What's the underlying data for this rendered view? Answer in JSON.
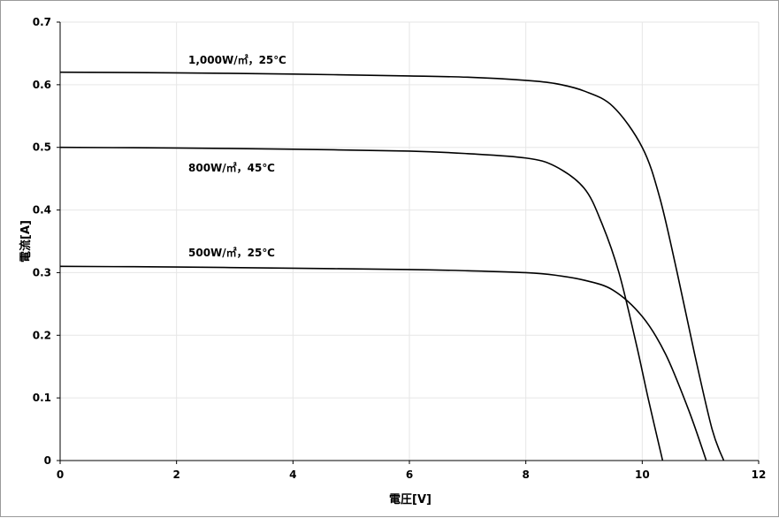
{
  "chart_data": {
    "type": "line",
    "xlabel": "電圧[V]",
    "ylabel": "電流[A]",
    "xlim": [
      0,
      12
    ],
    "ylim": [
      0,
      0.7
    ],
    "xticks": [
      0,
      2,
      4,
      6,
      8,
      10,
      12
    ],
    "yticks": [
      0,
      0.1,
      0.2,
      0.3,
      0.4,
      0.5,
      0.6,
      0.7
    ],
    "xtick_labels": [
      "0",
      "2",
      "4",
      "6",
      "8",
      "10",
      "12"
    ],
    "ytick_labels": [
      "0",
      "0.1",
      "0.2",
      "0.3",
      "0.4",
      "0.5",
      "0.6",
      "0.7"
    ],
    "grid": true,
    "legend": "none",
    "series": [
      {
        "name": "1,000W/㎡，25℃",
        "x": [
          0,
          2,
          4,
          6,
          7,
          8,
          8.5,
          9,
          9.5,
          10,
          10.3,
          10.6,
          10.9,
          11.2,
          11.4
        ],
        "y": [
          0.62,
          0.619,
          0.617,
          0.614,
          0.612,
          0.607,
          0.602,
          0.59,
          0.565,
          0.5,
          0.42,
          0.3,
          0.17,
          0.05,
          0
        ]
      },
      {
        "name": "800W/㎡，45℃",
        "x": [
          0,
          2,
          4,
          6,
          7,
          8,
          8.5,
          9,
          9.3,
          9.6,
          9.9,
          10.1,
          10.35
        ],
        "y": [
          0.5,
          0.499,
          0.497,
          0.494,
          0.49,
          0.483,
          0.47,
          0.435,
          0.38,
          0.3,
          0.185,
          0.1,
          0
        ]
      },
      {
        "name": "500W/㎡，25℃",
        "x": [
          0,
          2,
          4,
          6,
          7,
          8,
          8.5,
          9,
          9.5,
          10,
          10.4,
          10.8,
          11.1
        ],
        "y": [
          0.31,
          0.309,
          0.307,
          0.305,
          0.303,
          0.3,
          0.296,
          0.288,
          0.272,
          0.23,
          0.17,
          0.08,
          0
        ]
      }
    ]
  }
}
